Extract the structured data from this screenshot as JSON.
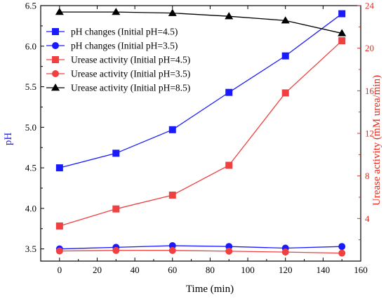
{
  "chart_data": {
    "type": "line",
    "xlabel": "Time (min)",
    "ylabel_left": "pH",
    "ylabel_right": "Urease activity (mM urea/min)",
    "xlim": [
      -10,
      160
    ],
    "ylim_left": [
      3.35,
      6.5
    ],
    "ylim_right": [
      0,
      24
    ],
    "x_ticks": [
      0,
      20,
      40,
      60,
      80,
      100,
      120,
      140,
      160
    ],
    "y_left_ticks": [
      3.5,
      4.0,
      4.5,
      5.0,
      5.5,
      6.0,
      6.5
    ],
    "y_right_ticks": [
      4,
      8,
      12,
      16,
      20,
      24
    ],
    "legend_position": "top-left",
    "colors": {
      "blue": "#1a1aff",
      "red": "#f04040",
      "black": "#000000",
      "right_axis": "#e8291c"
    },
    "series": [
      {
        "name": "pH changes (Initial pH=4.5)",
        "axis": "left",
        "marker": "square",
        "color": "#1a1aff",
        "x": [
          0,
          30,
          60,
          90,
          120,
          150
        ],
        "values": [
          4.5,
          4.68,
          4.97,
          5.43,
          5.88,
          6.4
        ]
      },
      {
        "name": "pH changes (Initial pH=3.5)",
        "axis": "left",
        "marker": "circle",
        "color": "#1a1aff",
        "x": [
          0,
          30,
          60,
          90,
          120,
          150
        ],
        "values": [
          3.5,
          3.52,
          3.54,
          3.53,
          3.51,
          3.53
        ]
      },
      {
        "name": "Urease activity (Initial pH=4.5)",
        "axis": "right",
        "marker": "square",
        "color": "#f04040",
        "x": [
          0,
          30,
          60,
          90,
          120,
          150
        ],
        "values": [
          3.3,
          4.9,
          6.2,
          9.0,
          15.8,
          20.7
        ]
      },
      {
        "name": "Urease activity (Initial pH=3.5)",
        "axis": "right",
        "marker": "circle",
        "color": "#f04040",
        "x": [
          0,
          30,
          60,
          90,
          120,
          150
        ],
        "values": [
          0.95,
          1.0,
          1.0,
          0.93,
          0.85,
          0.75
        ]
      },
      {
        "name": "Urease activity (Initial pH=8.5)",
        "axis": "right",
        "marker": "triangle",
        "color": "#000000",
        "x": [
          0,
          30,
          60,
          90,
          120,
          150
        ],
        "values": [
          23.4,
          23.4,
          23.3,
          23.0,
          22.6,
          21.4
        ]
      }
    ]
  }
}
